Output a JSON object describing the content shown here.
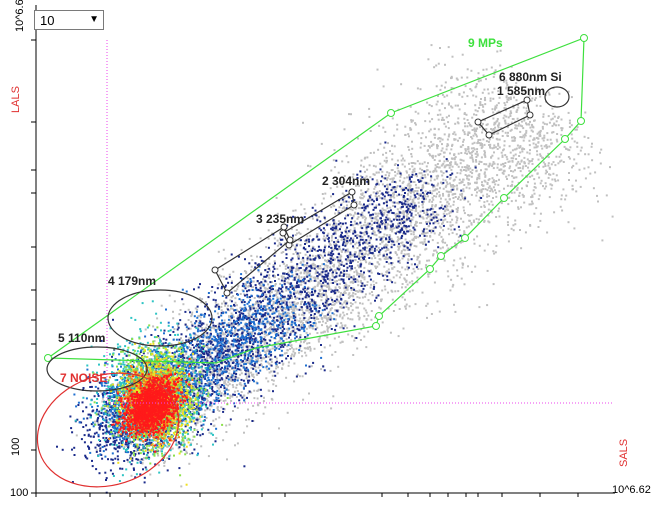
{
  "toolbar": {
    "dropdown_value": "10"
  },
  "chart_data": {
    "type": "scatter",
    "xlabel": "SALS",
    "ylabel": "LALS",
    "x_tick_labels": {
      "min": "100",
      "max": "10^6.62"
    },
    "y_tick_labels": {
      "min": "100",
      "max": "10^6.62"
    },
    "gates": [
      {
        "label": "9 MPs",
        "color": "#3ee03e"
      },
      {
        "label": "6 880nm Si",
        "color": "#333333"
      },
      {
        "label": "1 585nm",
        "color": "#333333"
      },
      {
        "label": "2 304nm",
        "color": "#333333"
      },
      {
        "label": "3 235nm",
        "color": "#333333"
      },
      {
        "label": "4 179nm",
        "color": "#333333"
      },
      {
        "label": "5 110nm",
        "color": "#333333"
      },
      {
        "label": "7 NOISE",
        "color": "#e03030"
      }
    ],
    "quadrant_color": "#ee44ee",
    "density_colors": [
      "#c0c0c0",
      "#1a2a8a",
      "#1e6fd0",
      "#2ec4c4",
      "#8be04a",
      "#f0e020",
      "#f08020",
      "#ff1a1a"
    ]
  }
}
